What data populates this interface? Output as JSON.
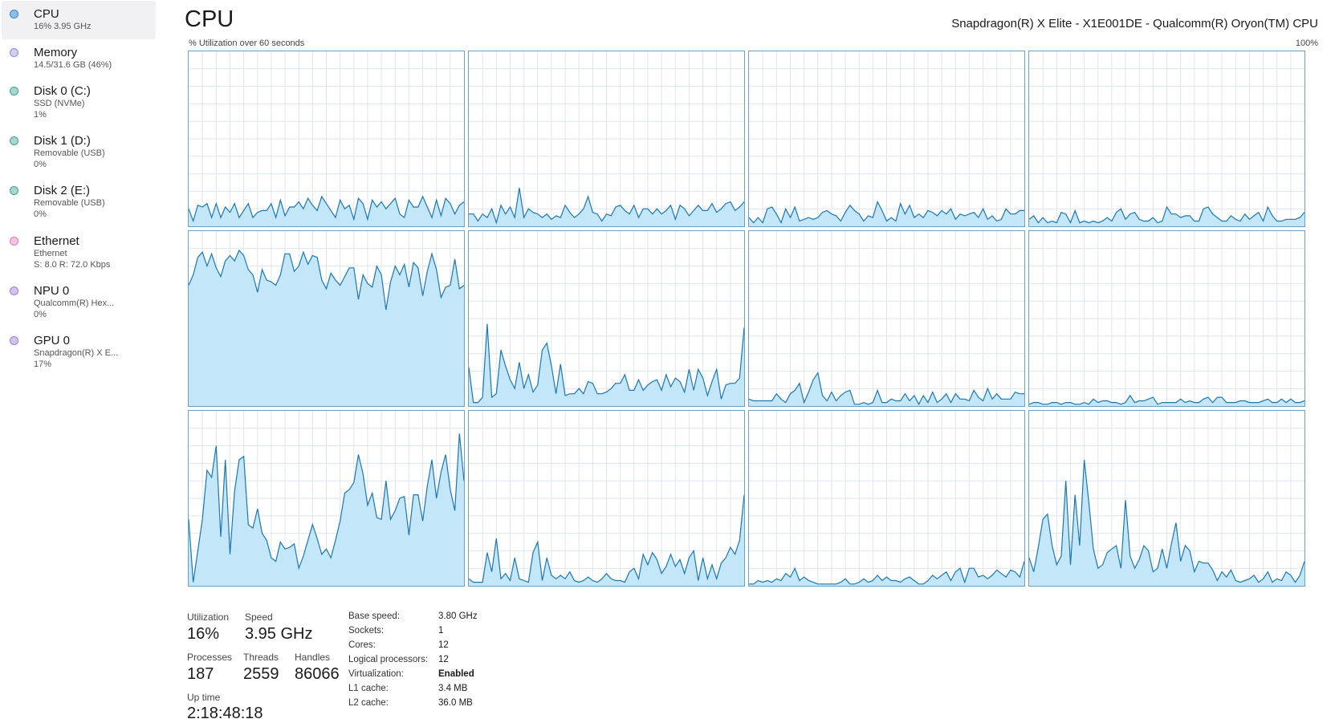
{
  "sidebar": {
    "items": [
      {
        "title": "CPU",
        "sub1": "16% 3.95 GHz",
        "sub2": "",
        "dot_fill": "#8fbfe8",
        "dot_border": "#3c86c8"
      },
      {
        "title": "Memory",
        "sub1": "14.5/31.6 GB (46%)",
        "sub2": "",
        "dot_fill": "#cfcff5",
        "dot_border": "#8d8dd6"
      },
      {
        "title": "Disk 0 (C:)",
        "sub1": "SSD (NVMe)",
        "sub2": "1%",
        "dot_fill": "#a7d7d1",
        "dot_border": "#4b9d93"
      },
      {
        "title": "Disk 1 (D:)",
        "sub1": "Removable (USB)",
        "sub2": "0%",
        "dot_fill": "#a7d7d1",
        "dot_border": "#4b9d93"
      },
      {
        "title": "Disk 2 (E:)",
        "sub1": "Removable (USB)",
        "sub2": "0%",
        "dot_fill": "#a7d7d1",
        "dot_border": "#4b9d93"
      },
      {
        "title": "Ethernet",
        "sub1": "Ethernet",
        "sub2": "S: 8.0 R: 72.0 Kbps",
        "dot_fill": "#f7c4e4",
        "dot_border": "#d978b6"
      },
      {
        "title": "NPU 0",
        "sub1": "Qualcomm(R) Hex...",
        "sub2": "0%",
        "dot_fill": "#d4c3ef",
        "dot_border": "#9a7fcf"
      },
      {
        "title": "GPU 0",
        "sub1": "Snapdragon(R) X E...",
        "sub2": "17%",
        "dot_fill": "#d4c3ef",
        "dot_border": "#9a7fcf"
      }
    ]
  },
  "header": {
    "title": "CPU",
    "cpu_name": "Snapdragon(R) X Elite - X1E001DE - Qualcomm(R) Oryon(TM) CPU",
    "util_caption": "% Utilization over 60 seconds",
    "max_label": "100%"
  },
  "colors": {
    "graph_line": "#1b77b4",
    "graph_fill": "#c3e6f8",
    "graph_grid": "#dde6ee",
    "graph_border": "#6e9fc1"
  },
  "chart_data": {
    "type": "area",
    "ylim": [
      0,
      100
    ],
    "grid": true,
    "series": [
      {
        "values": [
          10,
          3,
          12,
          11,
          13,
          5,
          13,
          5,
          11,
          8,
          13,
          5,
          9,
          13,
          5,
          8,
          9,
          9,
          13,
          5,
          15,
          6,
          11,
          11,
          14,
          10,
          16,
          12,
          9,
          17,
          13,
          9,
          5,
          15,
          10,
          12,
          4,
          16,
          13,
          4,
          15,
          11,
          14,
          10,
          13,
          16,
          7,
          5,
          15,
          11,
          11,
          17,
          11,
          5,
          15,
          6,
          16,
          13,
          7,
          12,
          14
        ]
      },
      {
        "values": [
          7,
          7,
          3,
          7,
          5,
          10,
          2,
          12,
          7,
          11,
          5,
          22,
          5,
          10,
          8,
          7,
          5,
          7,
          4,
          6,
          5,
          12,
          8,
          5,
          7,
          10,
          17,
          8,
          7,
          3,
          7,
          6,
          11,
          12,
          9,
          7,
          12,
          5,
          10,
          10,
          7,
          10,
          7,
          9,
          12,
          4,
          12,
          10,
          6,
          9,
          12,
          9,
          9,
          13,
          8,
          10,
          13,
          14,
          9,
          11,
          14
        ]
      },
      {
        "values": [
          5,
          2,
          5,
          2,
          10,
          11,
          7,
          2,
          10,
          5,
          11,
          3,
          4,
          5,
          4,
          5,
          8,
          9,
          7,
          6,
          3,
          8,
          12,
          9,
          7,
          3,
          6,
          5,
          14,
          9,
          3,
          5,
          3,
          13,
          7,
          12,
          5,
          7,
          5,
          9,
          8,
          6,
          9,
          7,
          10,
          4,
          7,
          6,
          7,
          8,
          5,
          10,
          4,
          6,
          3,
          4,
          10,
          7,
          7,
          9,
          9
        ]
      },
      {
        "values": [
          4,
          6,
          2,
          5,
          2,
          3,
          2,
          8,
          7,
          2,
          9,
          2,
          3,
          2,
          3,
          2,
          3,
          5,
          3,
          8,
          10,
          4,
          7,
          8,
          4,
          3,
          3,
          5,
          2,
          3,
          11,
          7,
          7,
          5,
          6,
          6,
          3,
          3,
          10,
          11,
          7,
          5,
          3,
          3,
          6,
          4,
          3,
          7,
          4,
          6,
          8,
          3,
          11,
          6,
          3,
          3,
          4,
          4,
          4,
          5,
          8
        ]
      },
      {
        "values": [
          69,
          75,
          85,
          88,
          80,
          87,
          79,
          74,
          83,
          86,
          83,
          89,
          86,
          78,
          75,
          65,
          78,
          72,
          71,
          69,
          75,
          87,
          87,
          77,
          80,
          88,
          81,
          86,
          85,
          72,
          67,
          76,
          72,
          69,
          74,
          79,
          79,
          61,
          75,
          70,
          68,
          80,
          75,
          55,
          71,
          80,
          75,
          81,
          68,
          82,
          79,
          63,
          77,
          87,
          78,
          62,
          68,
          69,
          84,
          67,
          69
        ]
      },
      {
        "values": [
          22,
          2,
          2,
          5,
          47,
          5,
          7,
          32,
          23,
          15,
          10,
          25,
          10,
          18,
          8,
          12,
          32,
          36,
          23,
          7,
          24,
          6,
          7,
          7,
          10,
          7,
          14,
          13,
          7,
          7,
          8,
          10,
          13,
          13,
          18,
          9,
          9,
          15,
          9,
          12,
          14,
          15,
          9,
          18,
          11,
          16,
          14,
          8,
          21,
          9,
          21,
          16,
          6,
          14,
          21,
          4,
          12,
          13,
          13,
          16,
          45
        ]
      },
      {
        "values": [
          4,
          3,
          3,
          3,
          3,
          3,
          7,
          4,
          2,
          7,
          9,
          13,
          2,
          8,
          15,
          19,
          6,
          3,
          8,
          3,
          6,
          8,
          9,
          1,
          1,
          2,
          1,
          2,
          9,
          2,
          2,
          4,
          3,
          3,
          7,
          3,
          6,
          1,
          6,
          2,
          8,
          2,
          4,
          7,
          2,
          7,
          4,
          4,
          3,
          9,
          5,
          3,
          10,
          4,
          7,
          4,
          4,
          4,
          8,
          7,
          7
        ]
      },
      {
        "values": [
          1,
          2,
          2,
          1,
          1,
          2,
          2,
          1,
          2,
          2,
          1,
          1,
          2,
          1,
          4,
          2,
          3,
          3,
          2,
          2,
          1,
          2,
          6,
          2,
          3,
          3,
          4,
          5,
          1,
          2,
          2,
          2,
          2,
          4,
          2,
          3,
          2,
          2,
          4,
          5,
          2,
          5,
          5,
          2,
          2,
          2,
          3,
          3,
          2,
          2,
          2,
          3,
          4,
          2,
          2,
          4,
          2,
          4,
          2,
          2,
          3
        ]
      },
      {
        "values": [
          38,
          2,
          20,
          38,
          66,
          62,
          80,
          28,
          72,
          18,
          54,
          72,
          74,
          35,
          33,
          44,
          30,
          26,
          16,
          14,
          25,
          21,
          22,
          24,
          10,
          17,
          26,
          35,
          27,
          18,
          21,
          16,
          26,
          37,
          53,
          55,
          59,
          75,
          64,
          46,
          53,
          39,
          38,
          60,
          38,
          43,
          50,
          51,
          29,
          52,
          52,
          37,
          57,
          72,
          50,
          65,
          75,
          55,
          43,
          87,
          60
        ]
      },
      {
        "values": [
          4,
          2,
          2,
          2,
          19,
          8,
          27,
          4,
          7,
          3,
          16,
          4,
          3,
          2,
          19,
          25,
          3,
          16,
          6,
          4,
          6,
          4,
          8,
          3,
          2,
          3,
          5,
          3,
          2,
          4,
          7,
          4,
          3,
          3,
          2,
          8,
          10,
          4,
          18,
          12,
          19,
          15,
          7,
          11,
          18,
          11,
          15,
          7,
          16,
          20,
          3,
          16,
          4,
          12,
          4,
          13,
          16,
          22,
          18,
          26,
          52
        ]
      },
      {
        "values": [
          1,
          1,
          3,
          2,
          3,
          2,
          4,
          3,
          7,
          5,
          10,
          3,
          5,
          3,
          2,
          1,
          1,
          1,
          1,
          1,
          2,
          4,
          1,
          1,
          2,
          4,
          2,
          3,
          6,
          3,
          5,
          3,
          3,
          2,
          4,
          5,
          3,
          1,
          1,
          3,
          6,
          4,
          6,
          8,
          3,
          8,
          10,
          2,
          10,
          10,
          5,
          6,
          4,
          6,
          9,
          7,
          5,
          9,
          8,
          5,
          14
        ]
      },
      {
        "values": [
          16,
          8,
          22,
          38,
          41,
          23,
          12,
          17,
          60,
          12,
          52,
          23,
          72,
          48,
          21,
          10,
          12,
          19,
          21,
          23,
          10,
          49,
          17,
          10,
          15,
          23,
          20,
          8,
          10,
          21,
          10,
          24,
          36,
          14,
          23,
          20,
          8,
          14,
          13,
          13,
          9,
          3,
          8,
          5,
          9,
          3,
          2,
          3,
          4,
          6,
          2,
          4,
          8,
          2,
          4,
          3,
          8,
          6,
          2,
          6,
          14
        ]
      }
    ]
  },
  "stats": {
    "utilization_label": "Utilization",
    "utilization_value": "16%",
    "speed_label": "Speed",
    "speed_value": "3.95 GHz",
    "processes_label": "Processes",
    "processes_value": "187",
    "threads_label": "Threads",
    "threads_value": "2559",
    "handles_label": "Handles",
    "handles_value": "86066",
    "uptime_label": "Up time",
    "uptime_value": "2:18:48:18"
  },
  "specs": [
    {
      "label": "Base speed:",
      "value": "3.80 GHz",
      "bold": false
    },
    {
      "label": "Sockets:",
      "value": "1",
      "bold": false
    },
    {
      "label": "Cores:",
      "value": "12",
      "bold": false
    },
    {
      "label": "Logical processors:",
      "value": "12",
      "bold": false
    },
    {
      "label": "Virtualization:",
      "value": "Enabled",
      "bold": true
    },
    {
      "label": "L1 cache:",
      "value": "3.4 MB",
      "bold": false
    },
    {
      "label": "L2 cache:",
      "value": "36.0 MB",
      "bold": false
    }
  ]
}
